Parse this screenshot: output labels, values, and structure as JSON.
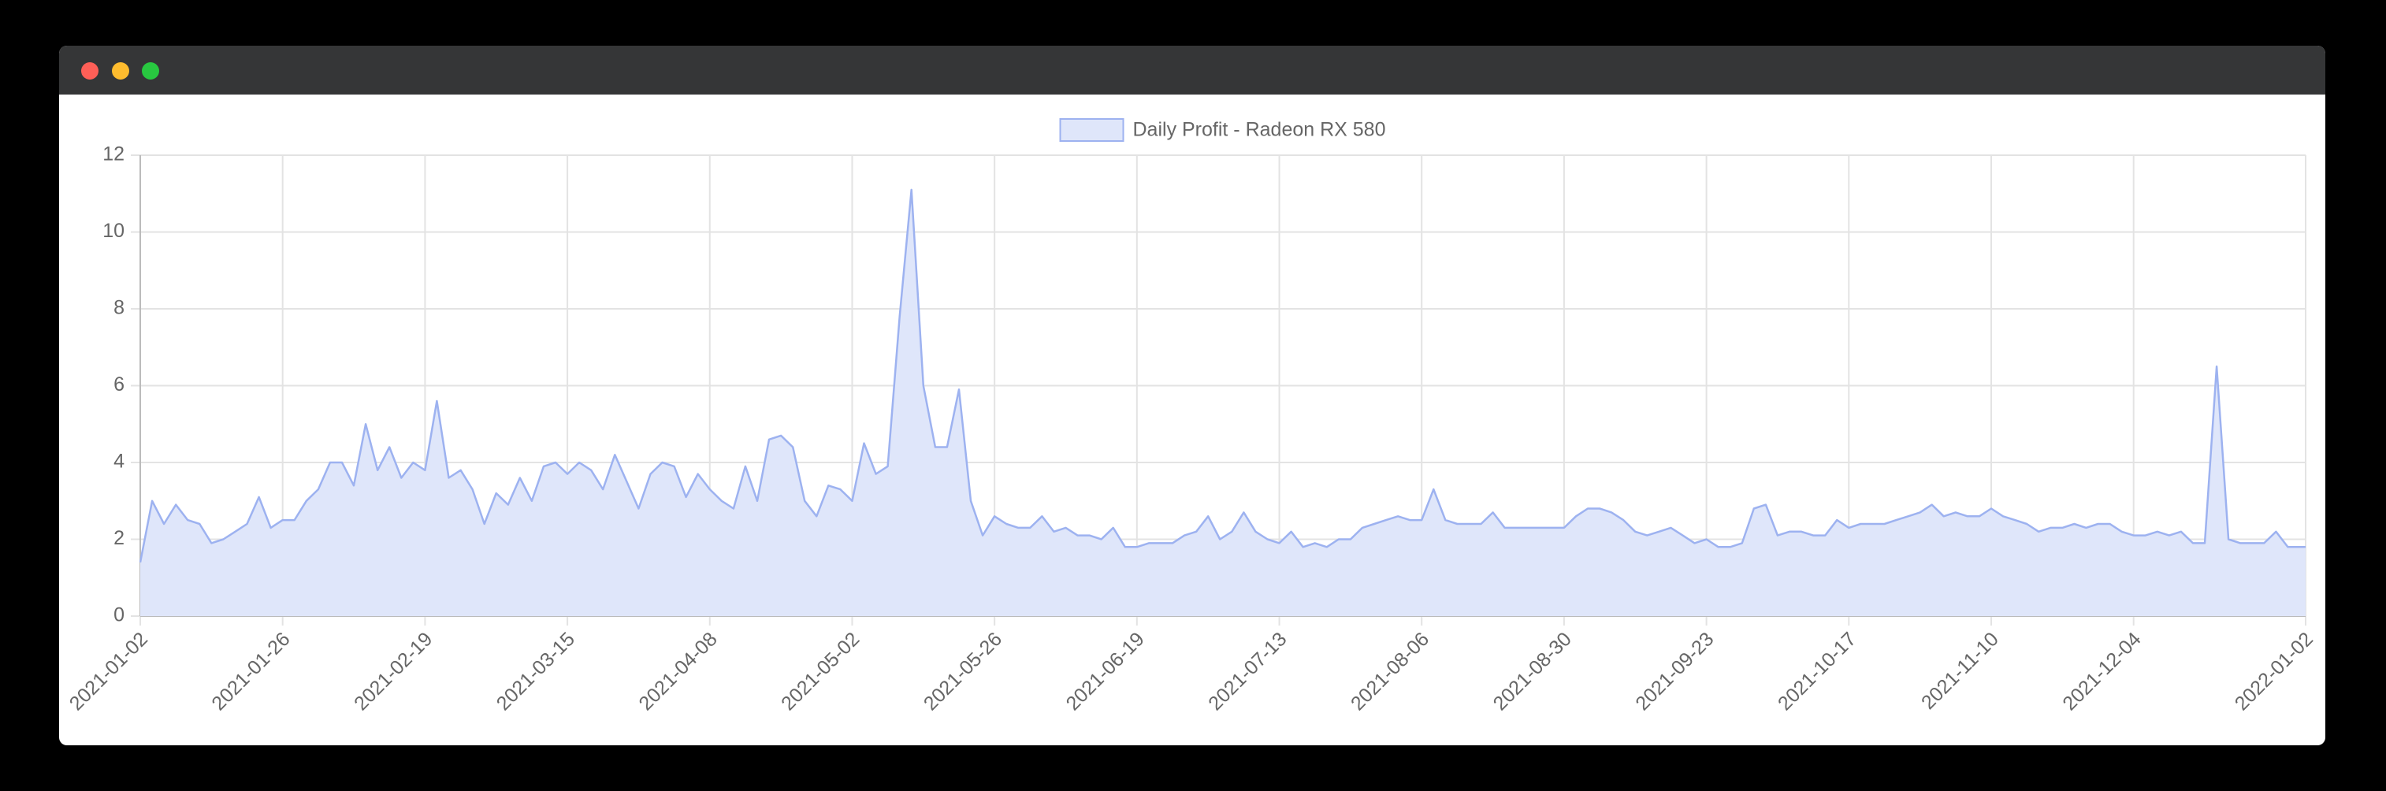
{
  "chart_data": {
    "type": "line",
    "x": [
      "2021-01-02",
      "2021-01-04",
      "2021-01-06",
      "2021-01-08",
      "2021-01-10",
      "2021-01-12",
      "2021-01-14",
      "2021-01-16",
      "2021-01-18",
      "2021-01-20",
      "2021-01-22",
      "2021-01-24",
      "2021-01-26",
      "2021-01-28",
      "2021-01-30",
      "2021-02-01",
      "2021-02-03",
      "2021-02-05",
      "2021-02-07",
      "2021-02-09",
      "2021-02-11",
      "2021-02-13",
      "2021-02-15",
      "2021-02-17",
      "2021-02-19",
      "2021-02-21",
      "2021-02-23",
      "2021-02-25",
      "2021-02-27",
      "2021-03-01",
      "2021-03-03",
      "2021-03-05",
      "2021-03-07",
      "2021-03-09",
      "2021-03-11",
      "2021-03-13",
      "2021-03-15",
      "2021-03-17",
      "2021-03-19",
      "2021-03-21",
      "2021-03-23",
      "2021-03-25",
      "2021-03-27",
      "2021-03-29",
      "2021-03-31",
      "2021-04-02",
      "2021-04-04",
      "2021-04-06",
      "2021-04-08",
      "2021-04-10",
      "2021-04-12",
      "2021-04-14",
      "2021-04-16",
      "2021-04-18",
      "2021-04-20",
      "2021-04-22",
      "2021-04-24",
      "2021-04-26",
      "2021-04-28",
      "2021-04-30",
      "2021-05-02",
      "2021-05-04",
      "2021-05-06",
      "2021-05-08",
      "2021-05-10",
      "2021-05-12",
      "2021-05-14",
      "2021-05-16",
      "2021-05-18",
      "2021-05-20",
      "2021-05-22",
      "2021-05-24",
      "2021-05-26",
      "2021-05-28",
      "2021-05-30",
      "2021-06-01",
      "2021-06-03",
      "2021-06-05",
      "2021-06-07",
      "2021-06-09",
      "2021-06-11",
      "2021-06-13",
      "2021-06-15",
      "2021-06-17",
      "2021-06-19",
      "2021-06-21",
      "2021-06-23",
      "2021-06-25",
      "2021-06-27",
      "2021-06-29",
      "2021-07-01",
      "2021-07-03",
      "2021-07-05",
      "2021-07-07",
      "2021-07-09",
      "2021-07-11",
      "2021-07-13",
      "2021-07-15",
      "2021-07-17",
      "2021-07-19",
      "2021-07-21",
      "2021-07-23",
      "2021-07-25",
      "2021-07-27",
      "2021-07-29",
      "2021-07-31",
      "2021-08-02",
      "2021-08-04",
      "2021-08-06",
      "2021-08-08",
      "2021-08-10",
      "2021-08-12",
      "2021-08-14",
      "2021-08-16",
      "2021-08-18",
      "2021-08-20",
      "2021-08-22",
      "2021-08-24",
      "2021-08-26",
      "2021-08-28",
      "2021-08-30",
      "2021-09-01",
      "2021-09-03",
      "2021-09-05",
      "2021-09-07",
      "2021-09-09",
      "2021-09-11",
      "2021-09-13",
      "2021-09-15",
      "2021-09-17",
      "2021-09-19",
      "2021-09-21",
      "2021-09-23",
      "2021-09-25",
      "2021-09-27",
      "2021-09-29",
      "2021-10-01",
      "2021-10-03",
      "2021-10-05",
      "2021-10-07",
      "2021-10-09",
      "2021-10-11",
      "2021-10-13",
      "2021-10-15",
      "2021-10-17",
      "2021-10-19",
      "2021-10-21",
      "2021-10-23",
      "2021-10-25",
      "2021-10-27",
      "2021-10-29",
      "2021-10-31",
      "2021-11-02",
      "2021-11-04",
      "2021-11-06",
      "2021-11-08",
      "2021-11-10",
      "2021-11-12",
      "2021-11-14",
      "2021-11-16",
      "2021-11-18",
      "2021-11-20",
      "2021-11-22",
      "2021-11-24",
      "2021-11-26",
      "2021-11-28",
      "2021-11-30",
      "2021-12-02",
      "2021-12-04",
      "2021-12-06",
      "2021-12-08",
      "2021-12-10",
      "2021-12-12",
      "2021-12-14",
      "2021-12-16",
      "2021-12-18",
      "2021-12-20",
      "2021-12-22",
      "2021-12-24",
      "2021-12-26",
      "2021-12-28",
      "2021-12-30",
      "2022-01-01",
      "2022-01-02"
    ],
    "series": [
      {
        "name": "Daily Profit - Radeon RX 580",
        "color": "#9db2f0",
        "fill": "#dfe6fa",
        "values": [
          1.4,
          3.0,
          2.4,
          2.9,
          2.5,
          2.4,
          1.9,
          2.0,
          2.2,
          2.4,
          3.1,
          2.3,
          2.5,
          2.5,
          3.0,
          3.3,
          4.0,
          4.0,
          3.4,
          5.0,
          3.8,
          4.4,
          3.6,
          4.0,
          3.8,
          5.6,
          3.6,
          3.8,
          3.3,
          2.4,
          3.2,
          2.9,
          3.6,
          3.0,
          3.9,
          4.0,
          3.7,
          4.0,
          3.8,
          3.3,
          4.2,
          3.5,
          2.8,
          3.7,
          4.0,
          3.9,
          3.1,
          3.7,
          3.3,
          3.0,
          2.8,
          3.9,
          3.0,
          4.6,
          4.7,
          4.4,
          3.0,
          2.6,
          3.4,
          3.3,
          3.0,
          4.5,
          3.7,
          3.9,
          7.8,
          11.1,
          6.0,
          4.4,
          4.4,
          5.9,
          3.0,
          2.1,
          2.6,
          2.4,
          2.3,
          2.3,
          2.6,
          2.2,
          2.3,
          2.1,
          2.1,
          2.0,
          2.3,
          1.8,
          1.8,
          1.9,
          1.9,
          1.9,
          2.1,
          2.2,
          2.6,
          2.0,
          2.2,
          2.7,
          2.2,
          2.0,
          1.9,
          2.2,
          1.8,
          1.9,
          1.8,
          2.0,
          2.0,
          2.3,
          2.4,
          2.5,
          2.6,
          2.5,
          2.5,
          3.3,
          2.5,
          2.4,
          2.4,
          2.4,
          2.7,
          2.3,
          2.3,
          2.3,
          2.3,
          2.3,
          2.3,
          2.6,
          2.8,
          2.8,
          2.7,
          2.5,
          2.2,
          2.1,
          2.2,
          2.3,
          2.1,
          1.9,
          2.0,
          1.8,
          1.8,
          1.9,
          2.8,
          2.9,
          2.1,
          2.2,
          2.2,
          2.1,
          2.1,
          2.5,
          2.3,
          2.4,
          2.4,
          2.4,
          2.5,
          2.6,
          2.7,
          2.9,
          2.6,
          2.7,
          2.6,
          2.6,
          2.8,
          2.6,
          2.5,
          2.4,
          2.2,
          2.3,
          2.3,
          2.4,
          2.3,
          2.4,
          2.4,
          2.2,
          2.1,
          2.1,
          2.2,
          2.1,
          2.2,
          1.9,
          1.9,
          6.5,
          2.0,
          1.9,
          1.9,
          1.9,
          2.2,
          1.8,
          1.8,
          1.8
        ]
      }
    ],
    "xlim": [
      "2021-01-02",
      "2022-01-02"
    ],
    "xticks": [
      "2021-01-02",
      "2021-01-26",
      "2021-02-19",
      "2021-03-15",
      "2021-04-08",
      "2021-05-02",
      "2021-05-26",
      "2021-06-19",
      "2021-07-13",
      "2021-08-06",
      "2021-08-30",
      "2021-09-23",
      "2021-10-17",
      "2021-11-10",
      "2021-12-04",
      "2022-01-02"
    ],
    "ylim": [
      0,
      12
    ],
    "yticks": [
      0,
      2,
      4,
      6,
      8,
      10,
      12
    ],
    "grid": true,
    "legend": "top"
  }
}
